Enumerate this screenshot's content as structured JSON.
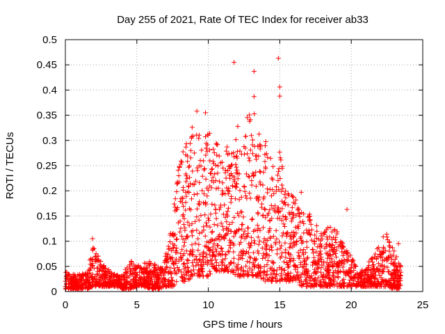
{
  "chart_data": {
    "type": "scatter",
    "title": "Day 255 of 2021, Rate Of TEC Index for receiver ab33",
    "xlabel": "GPS time / hours",
    "ylabel": "ROTI / TECUs",
    "xlim": [
      0,
      25
    ],
    "ylim": [
      0,
      0.5
    ],
    "xticks": [
      "0",
      "5",
      "10",
      "15",
      "20",
      "25"
    ],
    "yticks": [
      "0",
      "0.05",
      "0.1",
      "0.15",
      "0.2",
      "0.25",
      "0.3",
      "0.35",
      "0.4",
      "0.45",
      "0.5"
    ],
    "grid": true,
    "marker": "+",
    "marker_color": "#ff0000",
    "envelope": {
      "x": [
        0,
        0.5,
        1,
        1.5,
        2,
        2.5,
        3,
        3.5,
        4,
        4.5,
        5,
        5.5,
        6,
        6.5,
        7,
        7.5,
        8,
        8.5,
        9,
        9.5,
        10,
        10.5,
        11,
        11.5,
        12,
        12.5,
        13,
        13.5,
        14,
        14.5,
        15,
        15.5,
        16,
        16.5,
        17,
        17.5,
        18,
        18.5,
        19,
        19.5,
        20,
        20.5,
        21,
        21.5,
        22,
        22.5,
        23,
        23.5
      ],
      "upper": [
        0.04,
        0.035,
        0.035,
        0.04,
        0.1,
        0.06,
        0.045,
        0.035,
        0.03,
        0.065,
        0.05,
        0.06,
        0.06,
        0.05,
        0.07,
        0.15,
        0.27,
        0.3,
        0.36,
        0.3,
        0.33,
        0.3,
        0.3,
        0.28,
        0.34,
        0.33,
        0.38,
        0.33,
        0.3,
        0.27,
        0.3,
        0.2,
        0.19,
        0.17,
        0.16,
        0.14,
        0.12,
        0.13,
        0.12,
        0.09,
        0.07,
        0.04,
        0.05,
        0.07,
        0.1,
        0.12,
        0.08,
        0.05
      ],
      "lower": [
        0.005,
        0.005,
        0.005,
        0.005,
        0.01,
        0.01,
        0.01,
        0.01,
        0.005,
        0.005,
        0.01,
        0.01,
        0.005,
        0.005,
        0.01,
        0.01,
        0.02,
        0.02,
        0.03,
        0.03,
        0.03,
        0.04,
        0.04,
        0.04,
        0.03,
        0.03,
        0.03,
        0.03,
        0.02,
        0.02,
        0.02,
        0.02,
        0.02,
        0.01,
        0.01,
        0.01,
        0.01,
        0.01,
        0.01,
        0.01,
        0.01,
        0.01,
        0.01,
        0.01,
        0.01,
        0.01,
        0.005,
        0.005
      ]
    },
    "highlighted_points": [
      {
        "x": 11.8,
        "y": 0.455
      },
      {
        "x": 13.2,
        "y": 0.437
      },
      {
        "x": 14.9,
        "y": 0.463
      },
      {
        "x": 15.0,
        "y": 0.406
      },
      {
        "x": 15.0,
        "y": 0.388
      },
      {
        "x": 13.2,
        "y": 0.387
      },
      {
        "x": 9.8,
        "y": 0.355
      },
      {
        "x": 9.2,
        "y": 0.358
      },
      {
        "x": 19.7,
        "y": 0.163
      },
      {
        "x": 1.9,
        "y": 0.105
      },
      {
        "x": 16.5,
        "y": 0.197
      },
      {
        "x": 23.3,
        "y": 0.095
      }
    ]
  }
}
